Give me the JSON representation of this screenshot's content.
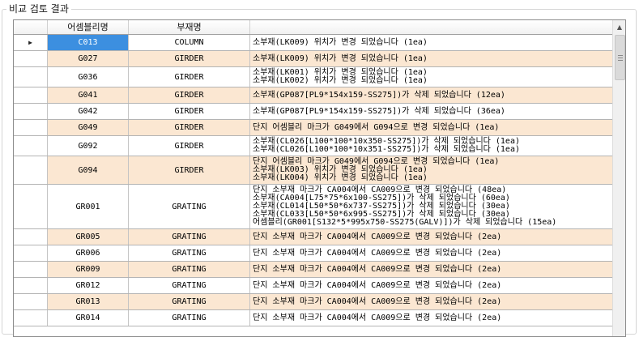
{
  "group_title": "비교 검토 결과",
  "columns": {
    "assembly": "어셈블리명",
    "member": "부재명",
    "result": ""
  },
  "rows": [
    {
      "assembly": "C013",
      "member": "COLUMN",
      "lines": [
        "소부재(LK009) 위치가 변경 되었습니다 (1ea)"
      ],
      "selected": true,
      "tan": false
    },
    {
      "assembly": "G027",
      "member": "GIRDER",
      "lines": [
        "소부재(LK009) 위치가 변경 되었습니다 (1ea)"
      ],
      "tan": true
    },
    {
      "assembly": "G036",
      "member": "GIRDER",
      "lines": [
        "소부재(LK001) 위치가 변경 되었습니다 (1ea)",
        "소부재(LK002) 위치가 변경 되었습니다 (1ea)"
      ],
      "tan": false
    },
    {
      "assembly": "G041",
      "member": "GIRDER",
      "lines": [
        "소부재(GP087[PL9*154x159-SS275])가 삭제 되었습니다 (12ea)"
      ],
      "tan": true
    },
    {
      "assembly": "G042",
      "member": "GIRDER",
      "lines": [
        "소부재(GP087[PL9*154x159-SS275])가 삭제 되었습니다 (36ea)"
      ],
      "tan": false
    },
    {
      "assembly": "G049",
      "member": "GIRDER",
      "lines": [
        "단지 어셈블리 마크가 G049에서 G094으로 변경 되었습니다 (1ea)"
      ],
      "tan": true
    },
    {
      "assembly": "G092",
      "member": "GIRDER",
      "lines": [
        "소부재(CL026[L100*100*10x350-SS275])가 삭제 되었습니다 (1ea)",
        "소부재(CL026[L100*100*10x351-SS275])가 삭제 되었습니다 (1ea)"
      ],
      "tan": false
    },
    {
      "assembly": "G094",
      "member": "GIRDER",
      "lines": [
        "단지 어셈블리 마크가 G049에서 G094으로 변경 되었습니다 (1ea)",
        "소부재(LK003) 위치가 변경 되었습니다 (1ea)",
        "소부재(LK004) 위치가 변경 되었습니다 (1ea)"
      ],
      "tan": true
    },
    {
      "assembly": "GR001",
      "member": "GRATING",
      "lines": [
        "단지 소부재 마크가 CA004에서 CA009으로 변경 되었습니다 (48ea)",
        "소부재(CA004[L75*75*6x100-SS275])가 삭제 되었습니다 (60ea)",
        "소부재(CL014[L50*50*6x737-SS275])가 삭제 되었습니다 (30ea)",
        "소부재(CL033[L50*50*6x995-SS275])가 삭제 되었습니다 (30ea)",
        "어셈블리(GR001[S132*5*995x750-SS275(GALV)])가 삭제 되었습니다 (15ea)"
      ],
      "tan": false
    },
    {
      "assembly": "GR005",
      "member": "GRATING",
      "lines": [
        "단지 소부재 마크가 CA004에서 CA009으로 변경 되었습니다 (2ea)"
      ],
      "tan": true
    },
    {
      "assembly": "GR006",
      "member": "GRATING",
      "lines": [
        "단지 소부재 마크가 CA004에서 CA009으로 변경 되었습니다 (2ea)"
      ],
      "tan": false
    },
    {
      "assembly": "GR009",
      "member": "GRATING",
      "lines": [
        "단지 소부재 마크가 CA004에서 CA009으로 변경 되었습니다 (2ea)"
      ],
      "tan": true
    },
    {
      "assembly": "GR012",
      "member": "GRATING",
      "lines": [
        "단지 소부재 마크가 CA004에서 CA009으로 변경 되었습니다 (2ea)"
      ],
      "tan": false
    },
    {
      "assembly": "GR013",
      "member": "GRATING",
      "lines": [
        "단지 소부재 마크가 CA004에서 CA009으로 변경 되었습니다 (2ea)"
      ],
      "tan": true
    },
    {
      "assembly": "GR014",
      "member": "GRATING",
      "lines": [
        "단지 소부재 마크가 CA004에서 CA009으로 변경 되었습니다 (2ea)"
      ],
      "tan": false
    }
  ],
  "icons": {
    "row_indicator": "current-row-arrow-icon",
    "scroll_up": "scroll-up-icon"
  },
  "colors": {
    "selected_cell": "#3c8fe0",
    "alt_row": "#fbe7d2"
  }
}
